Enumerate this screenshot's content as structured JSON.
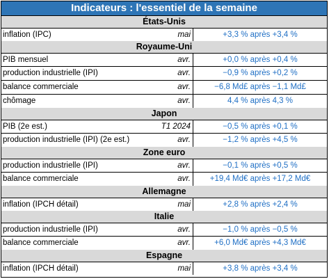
{
  "title": "Indicateurs : l'essentiel de la semaine",
  "sections": [
    {
      "name": "États-Unis",
      "rows": [
        {
          "label": "inflation (IPC)",
          "period": "mai",
          "value": "+3,3 % après +3,4 %"
        }
      ]
    },
    {
      "name": "Royaume-Uni",
      "rows": [
        {
          "label": "PIB mensuel",
          "period": "avr.",
          "value": "+0,0 % après +0,4 %"
        },
        {
          "label": "production industrielle (IPI)",
          "period": "avr.",
          "value": "−0,9 % après +0,2 %"
        },
        {
          "label": "balance commerciale",
          "period": "avr.",
          "value": "−6,8 Md£ après −1,1 Md£"
        },
        {
          "label": "chômage",
          "period": "avr.",
          "value": "4,4 % après 4,3 %"
        }
      ]
    },
    {
      "name": "Japon",
      "rows": [
        {
          "label": "PIB (2e est.)",
          "period": "T1 2024",
          "value": "−0,5 % après +0,1 %"
        },
        {
          "label": "production industrielle (IPI) (2e est.)",
          "period": "avr.",
          "value": "−1,2 % après +4,5 %"
        }
      ]
    },
    {
      "name": "Zone euro",
      "rows": [
        {
          "label": "production industrielle (IPI)",
          "period": "avr.",
          "value": "−0,1 % après +0,5 %"
        },
        {
          "label": "balance commerciale",
          "period": "avr.",
          "value": "+19,4 Md€ après +17,2 Md€"
        }
      ]
    },
    {
      "name": "Allemagne",
      "rows": [
        {
          "label": "inflation (IPCH détail)",
          "period": "mai",
          "value": "+2,8 % après +2,4 %"
        }
      ]
    },
    {
      "name": "Italie",
      "rows": [
        {
          "label": "production industrielle (IPI)",
          "period": "avr.",
          "value": "−1,0 % après −0,5 %"
        },
        {
          "label": "balance commerciale",
          "period": "avr.",
          "value": "+6,0 Md€ après +4,3 Md€"
        }
      ]
    },
    {
      "name": "Espagne",
      "rows": [
        {
          "label": "inflation (IPCH détail)",
          "period": "mai",
          "value": "+3,8 % après +3,4 %"
        }
      ]
    }
  ],
  "colors": {
    "title_background": "#2e75b6",
    "section_background": "#d9d9d9",
    "value_text": "#1f6fc5"
  }
}
